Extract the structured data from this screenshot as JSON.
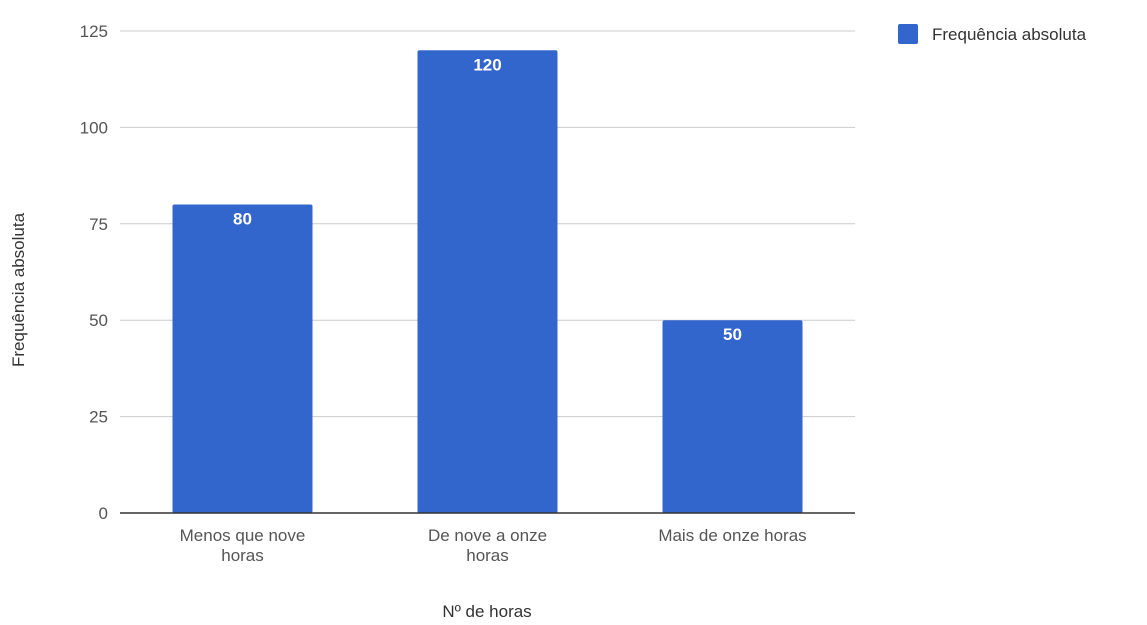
{
  "chart_data": {
    "type": "bar",
    "title": "",
    "xlabel": "Nº de horas",
    "ylabel": "Frequência absoluta",
    "categories": [
      [
        "Menos que nove",
        "horas"
      ],
      [
        "De nove a onze",
        "horas"
      ],
      [
        "Mais de onze horas"
      ]
    ],
    "series": [
      {
        "name": "Frequência absoluta",
        "values": [
          80,
          120,
          50
        ],
        "color": "#3366cc"
      }
    ],
    "ylim": [
      0,
      125
    ],
    "yticks": [
      0,
      25,
      50,
      75,
      100,
      125
    ],
    "grid": true,
    "legend_position": "top-right",
    "data_labels": true
  }
}
